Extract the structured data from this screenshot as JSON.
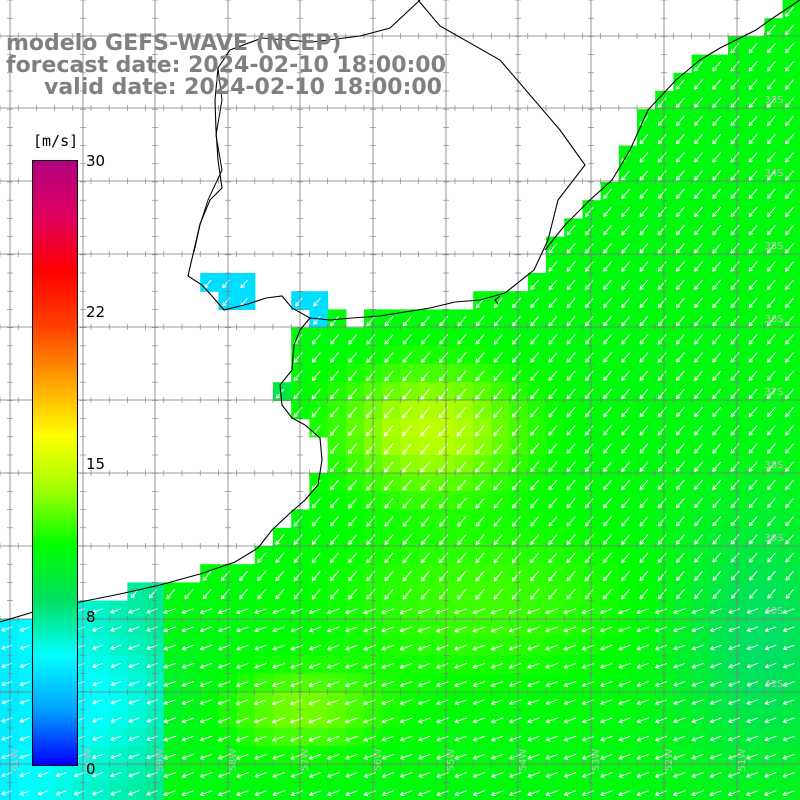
{
  "title": {
    "line1": "modelo GEFS-WAVE (NCEP)",
    "line2": "forecast date: 2024-02-10 18:00:00",
    "line3": "valid date: 2024-02-10 18:00:00"
  },
  "colorbar": {
    "unit": "[m/s]",
    "ticks": [
      "30",
      "22",
      "15",
      "8",
      "0"
    ],
    "min": 0,
    "max": 30,
    "colors": [
      "#0000ff",
      "#00a0ff",
      "#00ffff",
      "#00e060",
      "#00ff00",
      "#a0ff00",
      "#ffff00",
      "#ffa000",
      "#ff4000",
      "#ff0000",
      "#e00060",
      "#b00080"
    ]
  },
  "lat_labels": [
    "32S",
    "33S",
    "34S",
    "35S",
    "36S",
    "37S",
    "38S",
    "39S",
    "40S",
    "41S"
  ],
  "lon_labels": [
    "61W",
    "60W",
    "59W",
    "58W",
    "57W",
    "56W",
    "55W",
    "54W",
    "53W",
    "52W",
    "51W"
  ]
}
